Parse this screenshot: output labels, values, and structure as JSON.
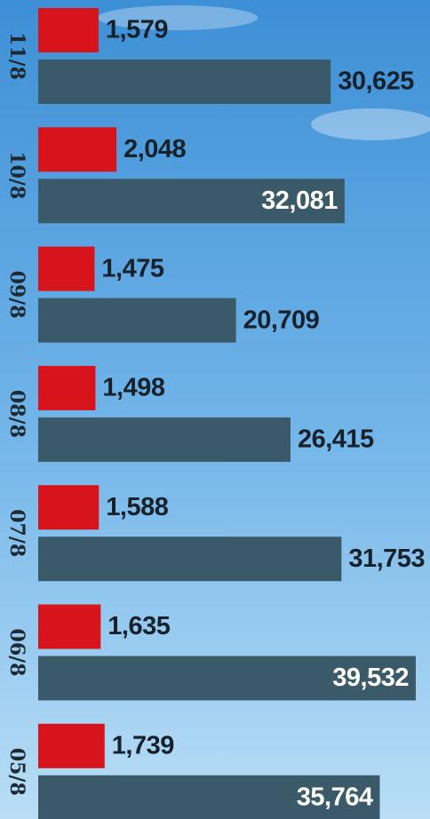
{
  "chart_data": {
    "type": "hbar",
    "categories": [
      "11/8",
      "10/8",
      "09/8",
      "08/8",
      "07/8",
      "06/8",
      "05/8"
    ],
    "series": [
      {
        "color": "#d7141c",
        "axis": "x2",
        "values": [
          1579,
          2048,
          1475,
          1498,
          1588,
          1635,
          1739
        ],
        "value_labels": [
          "1,579",
          "2,048",
          "1,475",
          "1,498",
          "1,588",
          "1,635",
          "1,739"
        ]
      },
      {
        "color": "#3a5a69",
        "values": [
          30625,
          32081,
          20709,
          26415,
          31753,
          39532,
          35764
        ],
        "value_labels": [
          "30,625",
          "32,081",
          "20,709",
          "26,415",
          "31,753",
          "39,532",
          "35,764"
        ]
      }
    ],
    "xlim": [
      0,
      40000
    ],
    "x2lim": [
      0,
      10000
    ]
  }
}
